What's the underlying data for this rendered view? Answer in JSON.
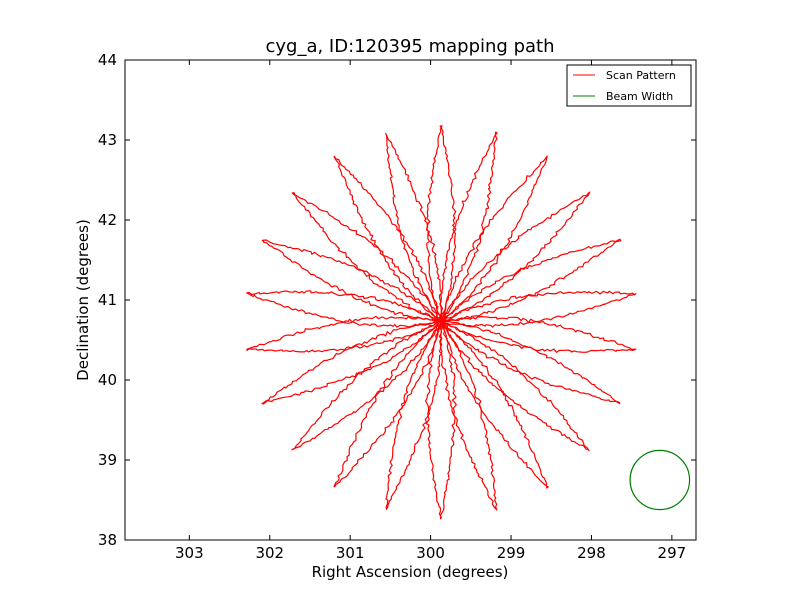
{
  "chart_data": {
    "type": "line",
    "title": "cyg_a, ID:120395 mapping path",
    "xlabel": "Right Ascension (degrees)",
    "ylabel": "Declination (degrees)",
    "xlim": [
      303.8,
      296.7
    ],
    "ylim": [
      38,
      44
    ],
    "xticks": [
      303,
      302,
      301,
      300,
      299,
      298,
      297
    ],
    "yticks": [
      38,
      39,
      40,
      41,
      42,
      43,
      44
    ],
    "grid": false,
    "legend_position": "top-right",
    "series": [
      {
        "name": "Scan Pattern",
        "color": "#ff0000",
        "pattern": "rosette",
        "center": [
          299.87,
          40.73
        ],
        "petals": 22,
        "petal_length": 2.45,
        "petal_half_width": 0.17,
        "petal_length_scale_deg_per_unit": 1.45
      },
      {
        "name": "Beam Width",
        "color": "#008000",
        "shape": "circle",
        "center": [
          297.15,
          38.75
        ],
        "radius_deg": 0.37
      }
    ]
  }
}
